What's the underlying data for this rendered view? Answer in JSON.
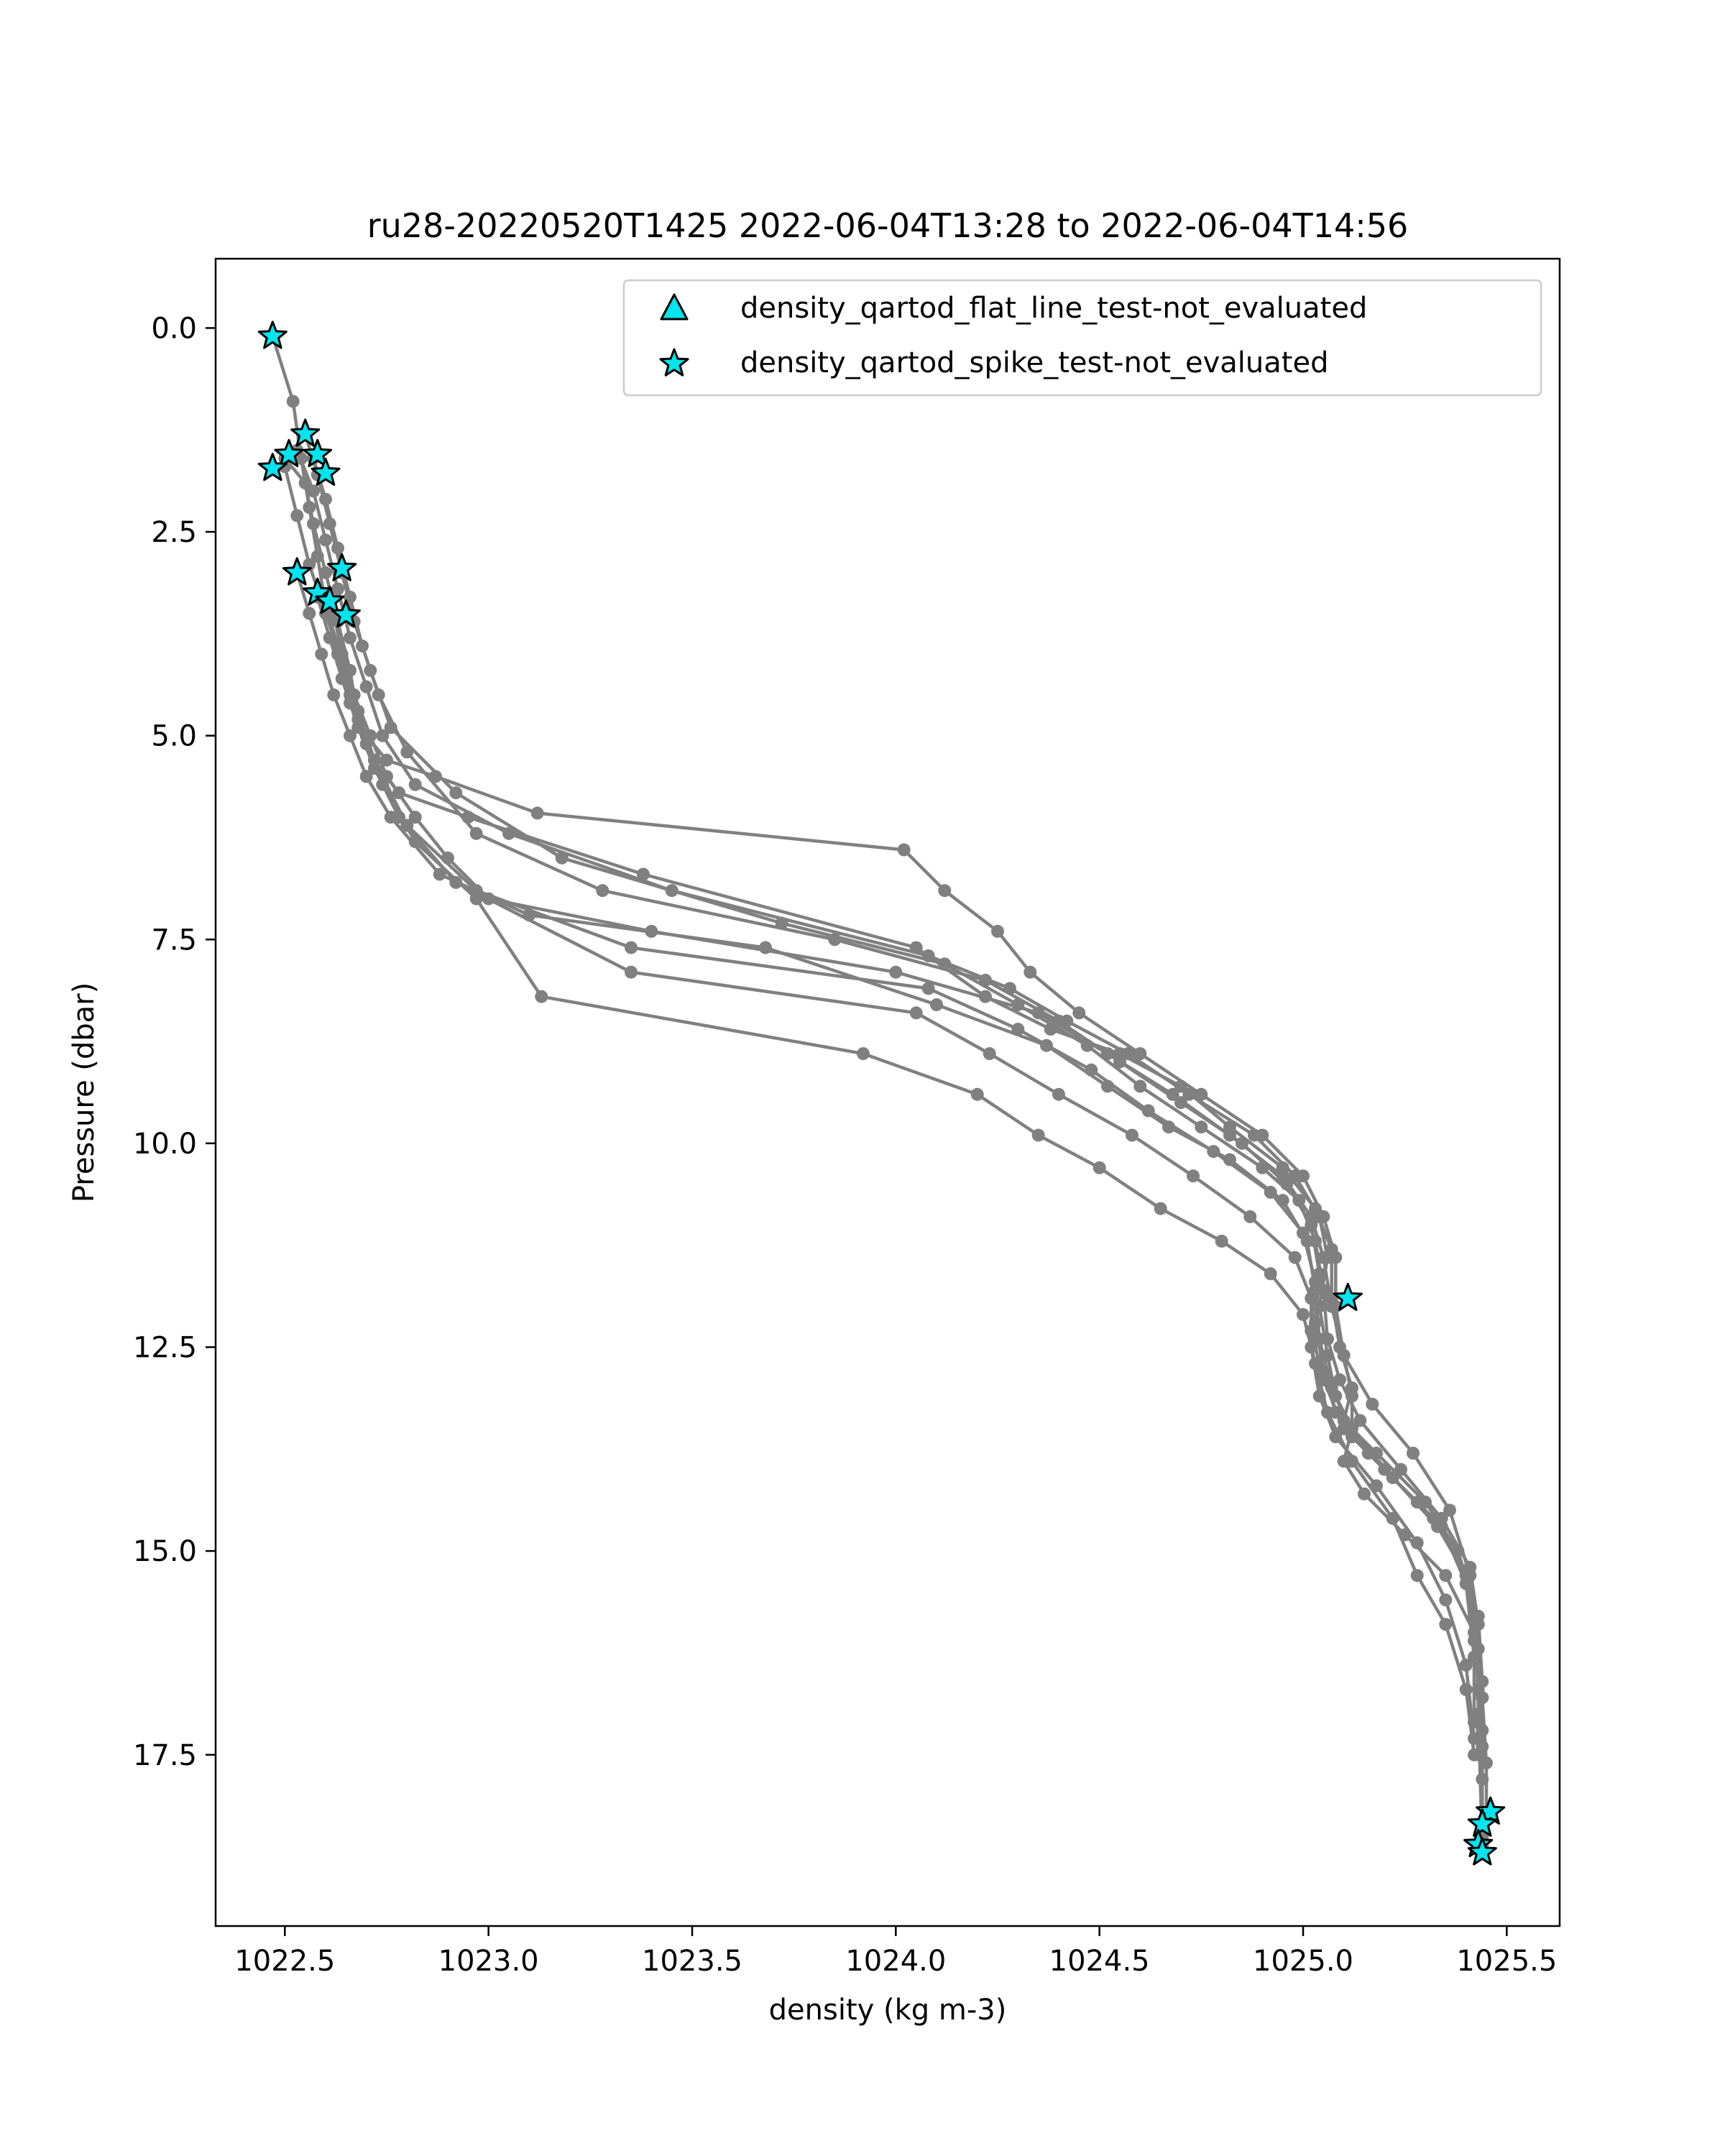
{
  "chart_data": {
    "type": "line",
    "title": "ru28-20220520T1425 2022-06-04T13:28 to 2022-06-04T14:56",
    "xlabel": "density (kg m-3)",
    "ylabel": "Pressure (dbar)",
    "xlim": [
      1022.33,
      1025.63
    ],
    "ylim": [
      19.6,
      -0.85
    ],
    "y_inverted": true,
    "grid": false,
    "legend_position": "top-right",
    "xticks": [
      "1022.5",
      "1023.0",
      "1023.5",
      "1024.0",
      "1024.5",
      "1025.0",
      "1025.5"
    ],
    "yticks": [
      "0.0",
      "2.5",
      "5.0",
      "7.5",
      "10.0",
      "12.5",
      "15.0",
      "17.5"
    ],
    "xtick_values": [
      1022.5,
      1023.0,
      1023.5,
      1024.0,
      1024.5,
      1025.0,
      1025.5
    ],
    "ytick_values": [
      0.0,
      2.5,
      5.0,
      7.5,
      10.0,
      12.5,
      15.0,
      17.5
    ],
    "line_color": "#808080",
    "marker_color": "#00e5ee",
    "legend": [
      {
        "label": "density_qartod_flat_line_test-not_evaluated",
        "marker": "triangle"
      },
      {
        "label": "density_qartod_spike_test-not_evaluated",
        "marker": "star"
      }
    ],
    "series": [
      {
        "x": [
          1022.47,
          1022.52,
          1022.54,
          1022.56,
          1022.58,
          1022.6,
          1022.63,
          1022.66,
          1022.7,
          1022.75,
          1022.87,
          1023.12,
          1024.02,
          1024.12,
          1024.25,
          1024.33,
          1024.45,
          1024.6,
          1024.75,
          1024.9,
          1025.0,
          1025.05,
          1025.08,
          1025.08,
          1025.1,
          1025.12,
          1025.12,
          1025.1,
          1025.15,
          1025.25,
          1025.35,
          1025.42,
          1025.44,
          1025.45,
          1025.45
        ],
        "y": [
          0.1,
          0.9,
          1.6,
          2.2,
          2.8,
          3.4,
          4.0,
          4.6,
          5.0,
          5.3,
          5.5,
          5.95,
          6.4,
          6.9,
          7.4,
          7.9,
          8.4,
          8.9,
          9.4,
          9.9,
          10.4,
          10.9,
          11.4,
          12.0,
          12.6,
          13.1,
          13.5,
          13.9,
          14.3,
          14.8,
          15.3,
          16.0,
          16.8,
          17.6,
          18.3
        ]
      },
      {
        "x": [
          1022.5,
          1022.55,
          1022.57,
          1022.6,
          1022.63,
          1022.66,
          1022.68,
          1022.72,
          1022.78,
          1022.95,
          1023.38,
          1024.05,
          1024.22,
          1024.38,
          1024.55,
          1024.7,
          1024.82,
          1024.95,
          1025.03,
          1025.07,
          1025.07,
          1025.09,
          1025.12,
          1025.1,
          1025.16,
          1025.28,
          1025.38,
          1025.43,
          1025.44,
          1025.44,
          1025.44
        ],
        "y": [
          1.6,
          1.9,
          2.4,
          3.0,
          3.6,
          4.2,
          4.8,
          5.3,
          5.7,
          6.0,
          6.7,
          7.6,
          8.2,
          8.6,
          8.9,
          9.3,
          9.8,
          10.3,
          10.8,
          11.3,
          11.9,
          12.5,
          13.0,
          13.4,
          13.8,
          14.4,
          15.0,
          15.8,
          16.6,
          17.4,
          18.5
        ]
      },
      {
        "x": [
          1022.53,
          1022.57,
          1022.6,
          1022.63,
          1022.66,
          1022.7,
          1022.74,
          1022.82,
          1023.05,
          1023.45,
          1024.08,
          1024.28,
          1024.42,
          1024.57,
          1024.72,
          1024.88,
          1024.98,
          1025.04,
          1025.06,
          1025.04,
          1025.06,
          1025.08,
          1025.12,
          1025.22,
          1025.33,
          1025.4,
          1025.43,
          1025.43,
          1025.44
        ],
        "y": [
          1.5,
          2.0,
          2.6,
          3.2,
          3.8,
          4.4,
          5.0,
          5.6,
          6.2,
          6.9,
          7.7,
          8.1,
          8.5,
          8.9,
          9.4,
          9.9,
          10.4,
          10.9,
          11.4,
          12.0,
          12.6,
          13.1,
          13.6,
          14.1,
          14.7,
          15.3,
          16.2,
          17.0,
          18.6
        ]
      },
      {
        "x": [
          1022.55,
          1022.58,
          1022.61,
          1022.64,
          1022.67,
          1022.71,
          1022.76,
          1022.92,
          1023.18,
          1023.72,
          1024.12,
          1024.3,
          1024.47,
          1024.6,
          1024.75,
          1024.9,
          1024.99,
          1025.03,
          1025.05,
          1025.06,
          1025.09,
          1025.14,
          1025.24,
          1025.34,
          1025.41,
          1025.43,
          1025.44,
          1025.44
        ],
        "y": [
          1.3,
          1.8,
          2.4,
          3.0,
          3.6,
          4.2,
          4.9,
          5.7,
          6.5,
          7.3,
          7.8,
          8.3,
          8.8,
          9.3,
          9.8,
          10.3,
          10.7,
          11.2,
          11.8,
          12.4,
          12.9,
          13.4,
          14.0,
          14.6,
          15.2,
          15.9,
          16.8,
          17.8
        ]
      },
      {
        "x": [
          1022.57,
          1022.6,
          1022.63,
          1022.66,
          1022.69,
          1022.73,
          1022.8,
          1022.97,
          1023.28,
          1023.85,
          1024.22,
          1024.4,
          1024.55,
          1024.7,
          1024.85,
          1024.96,
          1025.02,
          1025.04,
          1025.03,
          1025.05,
          1025.08,
          1025.18,
          1025.3,
          1025.38,
          1025.42,
          1025.43,
          1025.43
        ],
        "y": [
          1.6,
          2.1,
          2.7,
          3.3,
          3.9,
          4.5,
          5.2,
          6.2,
          6.9,
          7.5,
          8.0,
          8.5,
          9.0,
          9.5,
          10.0,
          10.5,
          11.0,
          11.6,
          12.2,
          12.8,
          13.3,
          13.8,
          14.4,
          15.0,
          15.8,
          16.7,
          17.5
        ]
      },
      {
        "x": [
          1022.5,
          1022.53,
          1022.56,
          1022.6,
          1022.64,
          1022.68,
          1022.72,
          1022.8,
          1022.97,
          1023.35,
          1024.08,
          1024.3,
          1024.48,
          1024.62,
          1024.78,
          1024.92,
          1025.0,
          1025.03,
          1025.02,
          1025.05,
          1025.1,
          1025.2,
          1025.32,
          1025.4,
          1025.42,
          1025.42
        ],
        "y": [
          1.7,
          2.3,
          2.9,
          3.5,
          4.1,
          4.7,
          5.3,
          6.1,
          6.9,
          7.6,
          8.1,
          8.6,
          9.1,
          9.6,
          10.1,
          10.6,
          11.1,
          11.7,
          12.3,
          12.9,
          13.5,
          14.0,
          14.6,
          15.3,
          16.1,
          17.1
        ]
      },
      {
        "x": [
          1022.53,
          1022.56,
          1022.59,
          1022.62,
          1022.66,
          1022.7,
          1022.76,
          1022.88,
          1023.1,
          1023.68,
          1024.1,
          1024.37,
          1024.52,
          1024.67,
          1024.82,
          1024.95,
          1025.01,
          1025.03,
          1025.04,
          1025.07,
          1025.12,
          1025.22,
          1025.34,
          1025.4,
          1025.42
        ],
        "y": [
          3.0,
          3.5,
          4.0,
          4.5,
          5.0,
          5.5,
          6.0,
          6.7,
          7.2,
          7.6,
          8.3,
          8.8,
          9.3,
          9.8,
          10.2,
          10.7,
          11.2,
          11.8,
          12.4,
          13.0,
          13.5,
          14.1,
          14.7,
          15.4,
          16.3
        ]
      },
      {
        "x": [
          1022.58,
          1022.61,
          1022.64,
          1022.68,
          1022.72,
          1022.78,
          1022.92,
          1023.35,
          1024.05,
          1024.23,
          1024.4,
          1024.58,
          1024.73,
          1024.87,
          1024.98,
          1025.02,
          1025.02,
          1025.04,
          1025.08,
          1025.18,
          1025.28,
          1025.35,
          1025.4,
          1025.42
        ],
        "y": [
          3.3,
          3.8,
          4.3,
          4.9,
          5.4,
          6.0,
          6.8,
          7.9,
          8.4,
          8.9,
          9.4,
          9.9,
          10.4,
          10.9,
          11.4,
          11.9,
          12.5,
          13.1,
          13.6,
          14.2,
          14.9,
          15.6,
          16.4,
          17.3
        ]
      },
      {
        "x": [
          1022.6,
          1022.63,
          1022.66,
          1022.7,
          1022.74,
          1022.82,
          1022.97,
          1023.13,
          1023.92,
          1024.2,
          1024.35,
          1024.5,
          1024.65,
          1024.8,
          1024.92,
          1025.0,
          1025.03,
          1025.06,
          1025.12,
          1025.22,
          1025.28,
          1025.35,
          1025.4,
          1025.42
        ],
        "y": [
          3.4,
          3.9,
          4.5,
          5.1,
          5.6,
          6.3,
          7.0,
          8.2,
          8.9,
          9.4,
          9.9,
          10.3,
          10.8,
          11.2,
          11.6,
          12.1,
          12.7,
          13.3,
          13.9,
          14.6,
          15.3,
          15.9,
          16.7,
          17.5
        ]
      },
      {
        "x": [
          1022.62,
          1022.64,
          1022.67,
          1022.71,
          1022.75,
          1022.82,
          1022.9,
          1023.0,
          1023.4,
          1024.0,
          1024.35,
          1024.52,
          1024.68,
          1024.82,
          1024.95,
          1025.02,
          1025.05,
          1025.07,
          1025.1,
          1025.17,
          1025.27,
          1025.36,
          1025.41,
          1025.43,
          1025.44
        ],
        "y": [
          3.5,
          4.0,
          4.5,
          5.0,
          5.5,
          6.0,
          6.5,
          7.0,
          7.4,
          7.9,
          8.4,
          8.9,
          9.4,
          9.9,
          10.4,
          10.9,
          11.4,
          12.0,
          12.6,
          13.2,
          13.8,
          14.5,
          15.3,
          16.2,
          17.2
        ]
      }
    ],
    "spike_markers": [
      {
        "x": 1022.47,
        "y": 0.1
      },
      {
        "x": 1022.55,
        "y": 1.3
      },
      {
        "x": 1022.51,
        "y": 1.55
      },
      {
        "x": 1022.58,
        "y": 1.55
      },
      {
        "x": 1022.47,
        "y": 1.72
      },
      {
        "x": 1022.6,
        "y": 1.78
      },
      {
        "x": 1022.53,
        "y": 3.0
      },
      {
        "x": 1022.64,
        "y": 2.95
      },
      {
        "x": 1022.58,
        "y": 3.25
      },
      {
        "x": 1022.61,
        "y": 3.35
      },
      {
        "x": 1022.65,
        "y": 3.52
      },
      {
        "x": 1025.11,
        "y": 11.9
      },
      {
        "x": 1025.46,
        "y": 18.2
      },
      {
        "x": 1025.44,
        "y": 18.35
      },
      {
        "x": 1025.43,
        "y": 18.6
      },
      {
        "x": 1025.44,
        "y": 18.7
      }
    ]
  }
}
